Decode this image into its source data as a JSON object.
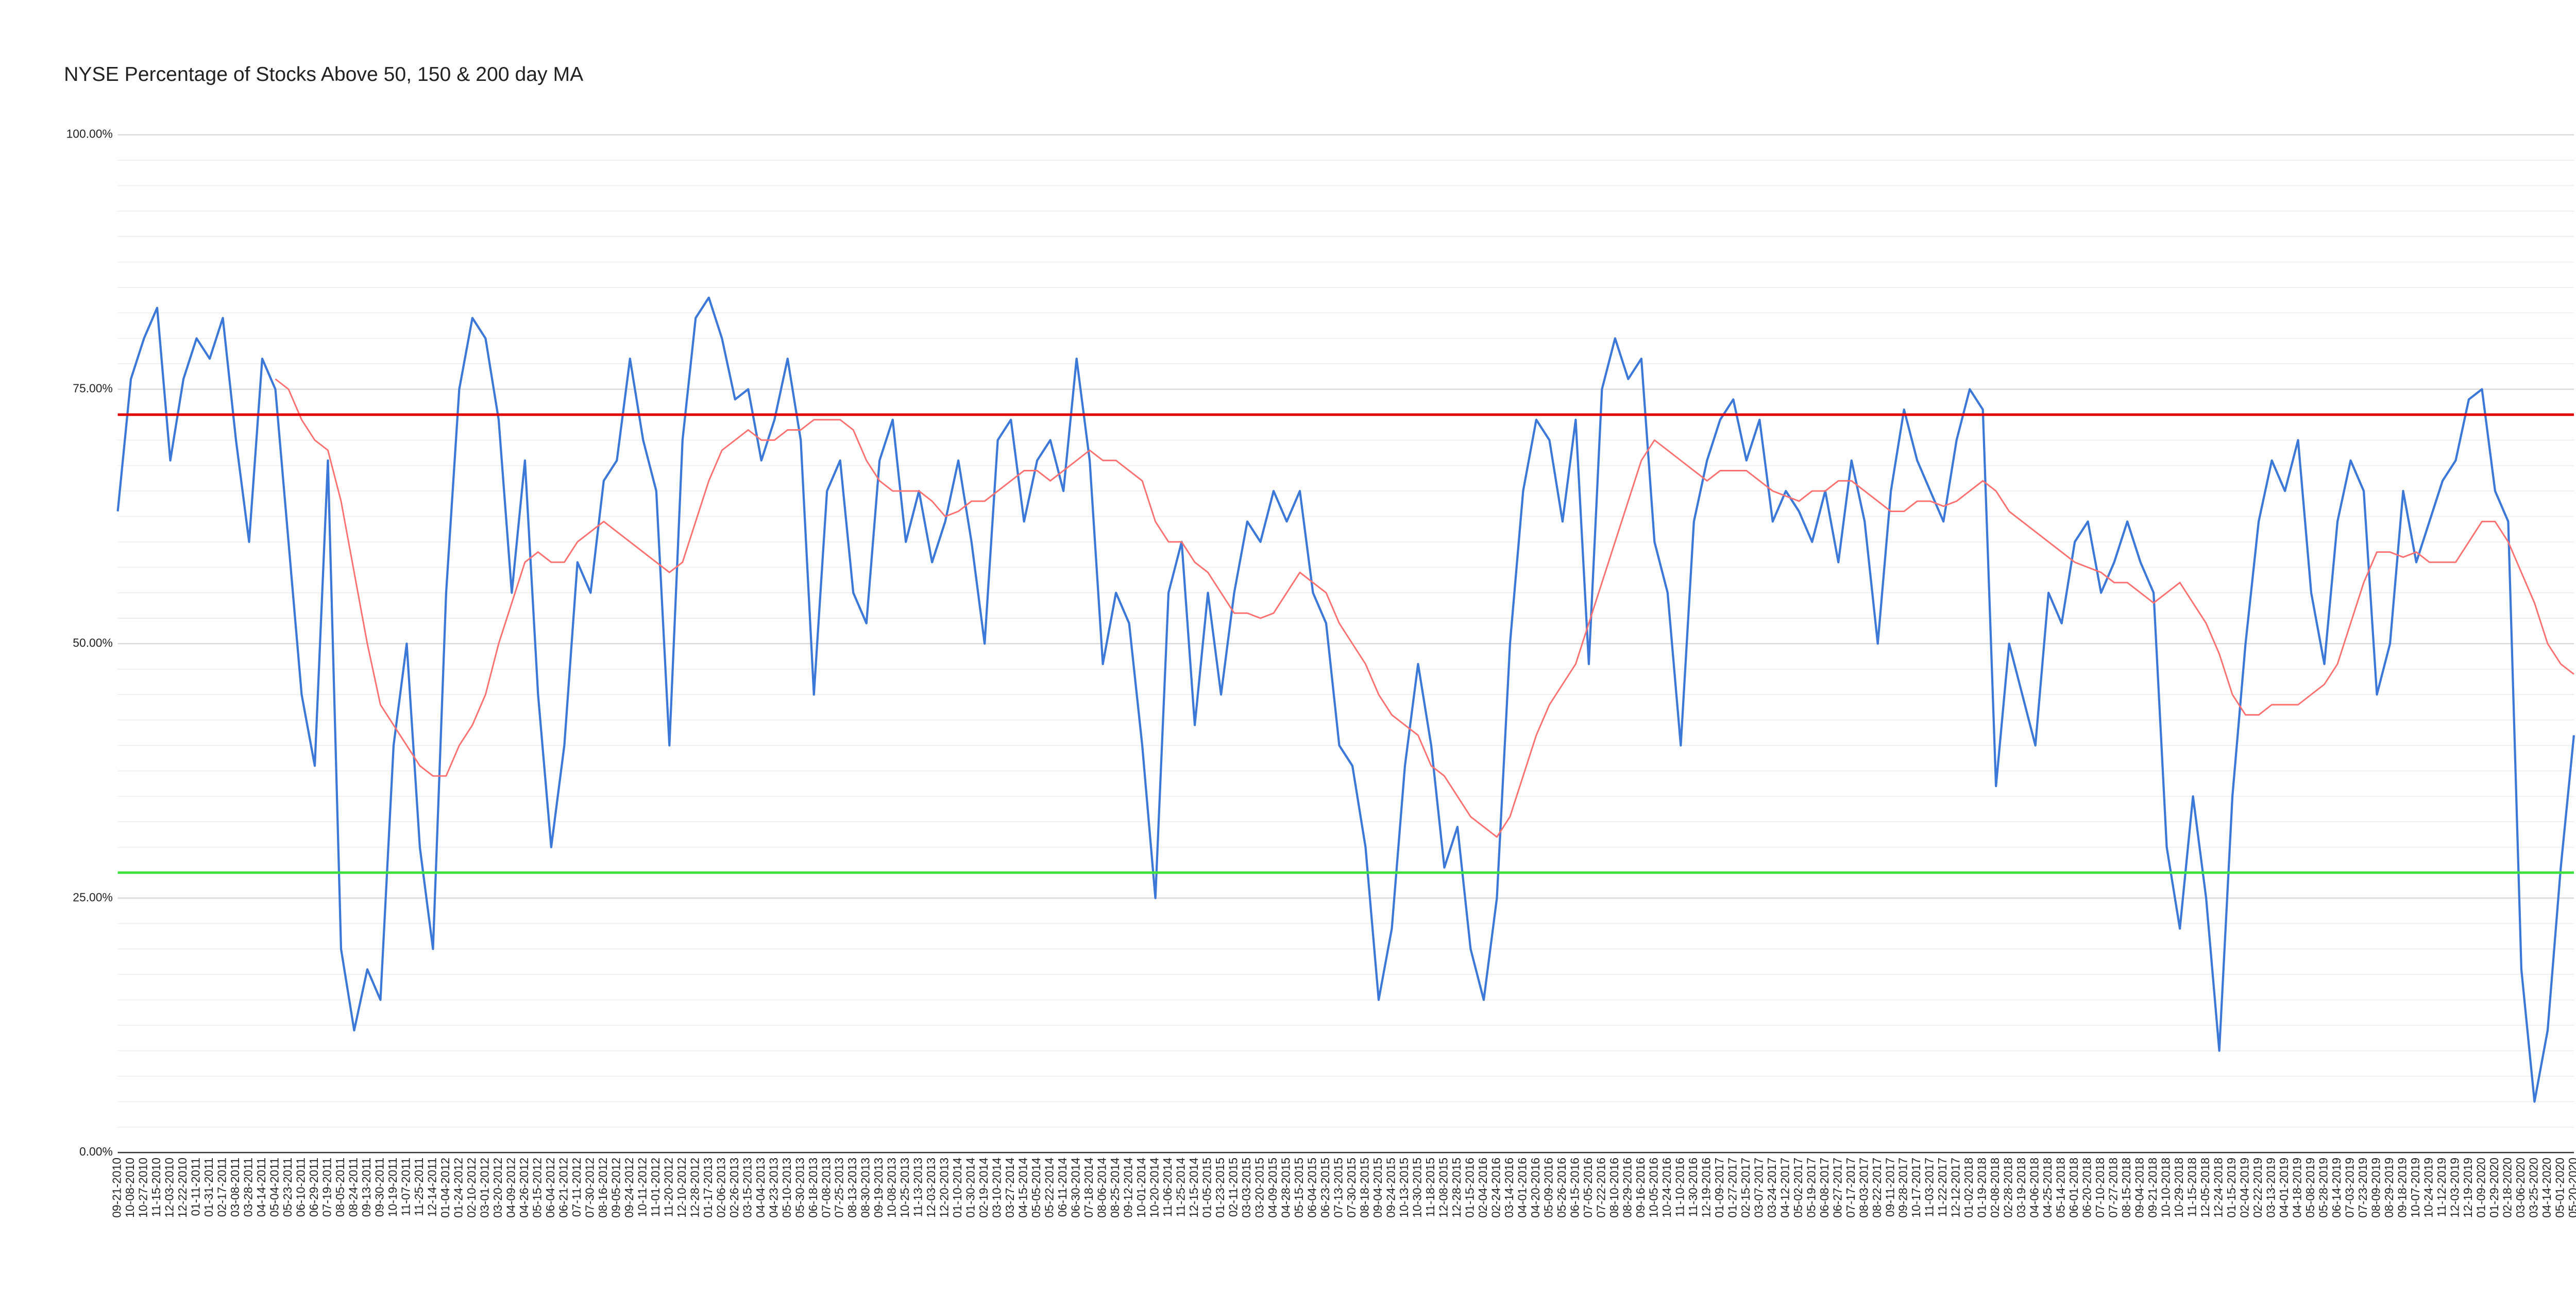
{
  "chart_data": {
    "type": "line",
    "title": "NYSE Percentage of Stocks Above 50, 150 & 200 day MA",
    "categories": [
      "09-21-2010",
      "10-08-2010",
      "10-27-2010",
      "11-15-2010",
      "12-03-2010",
      "12-22-2010",
      "01-11-2011",
      "01-31-2011",
      "02-17-2011",
      "03-08-2011",
      "03-28-2011",
      "04-14-2011",
      "05-04-2011",
      "05-23-2011",
      "06-10-2011",
      "06-29-2011",
      "07-19-2011",
      "08-05-2011",
      "08-24-2011",
      "09-13-2011",
      "09-30-2011",
      "10-19-2011",
      "11-07-2011",
      "11-25-2011",
      "12-14-2011",
      "01-04-2012",
      "01-24-2012",
      "02-10-2012",
      "03-01-2012",
      "03-20-2012",
      "04-09-2012",
      "04-26-2012",
      "05-15-2012",
      "06-04-2012",
      "06-21-2012",
      "07-11-2012",
      "07-30-2012",
      "08-16-2012",
      "09-05-2012",
      "09-24-2012",
      "10-11-2012",
      "11-01-2012",
      "11-20-2012",
      "12-10-2012",
      "12-28-2012",
      "01-17-2013",
      "02-06-2013",
      "02-26-2013",
      "03-15-2013",
      "04-04-2013",
      "04-23-2013",
      "05-10-2013",
      "05-30-2013",
      "06-18-2013",
      "07-08-2013",
      "07-25-2013",
      "08-13-2013",
      "08-30-2013",
      "09-19-2013",
      "10-08-2013",
      "10-25-2013",
      "11-13-2013",
      "12-03-2013",
      "12-20-2013",
      "01-10-2014",
      "01-30-2014",
      "02-19-2014",
      "03-10-2014",
      "03-27-2014",
      "04-15-2014",
      "05-05-2014",
      "05-22-2014",
      "06-11-2014",
      "06-30-2014",
      "07-18-2014",
      "08-06-2014",
      "08-25-2014",
      "09-12-2014",
      "10-01-2014",
      "10-20-2014",
      "11-06-2014",
      "11-25-2014",
      "12-15-2014",
      "01-05-2015",
      "01-23-2015",
      "02-11-2015",
      "03-03-2015",
      "03-20-2015",
      "04-09-2015",
      "04-28-2015",
      "05-15-2015",
      "06-04-2015",
      "06-23-2015",
      "07-13-2015",
      "07-30-2015",
      "08-18-2015",
      "09-04-2015",
      "09-24-2015",
      "10-13-2015",
      "10-30-2015",
      "11-18-2015",
      "12-08-2015",
      "12-28-2015",
      "01-15-2016",
      "02-04-2016",
      "02-24-2016",
      "03-14-2016",
      "04-01-2016",
      "04-20-2016",
      "05-09-2016",
      "05-26-2016",
      "06-15-2016",
      "07-05-2016",
      "07-22-2016",
      "08-10-2016",
      "08-29-2016",
      "09-16-2016",
      "10-05-2016",
      "10-24-2016",
      "11-10-2016",
      "11-30-2016",
      "12-19-2016",
      "01-09-2017",
      "01-27-2017",
      "02-15-2017",
      "03-07-2017",
      "03-24-2017",
      "04-12-2017",
      "05-02-2017",
      "05-19-2017",
      "06-08-2017",
      "06-27-2017",
      "07-17-2017",
      "08-03-2017",
      "08-22-2017",
      "09-11-2017",
      "09-28-2017",
      "10-17-2017",
      "11-03-2017",
      "11-22-2017",
      "12-12-2017",
      "01-02-2018",
      "01-19-2018",
      "02-08-2018",
      "02-28-2018",
      "03-19-2018",
      "04-06-2018",
      "04-25-2018",
      "05-14-2018",
      "06-01-2018",
      "06-20-2018",
      "07-10-2018",
      "07-27-2018",
      "08-15-2018",
      "09-04-2018",
      "09-21-2018",
      "10-10-2018",
      "10-29-2018",
      "11-15-2018",
      "12-05-2018",
      "12-24-2018",
      "01-15-2019",
      "02-04-2019",
      "02-22-2019",
      "03-13-2019",
      "04-01-2019",
      "04-18-2019",
      "05-08-2019",
      "05-28-2019",
      "06-14-2019",
      "07-03-2019",
      "07-23-2019",
      "08-09-2019",
      "08-29-2019",
      "09-18-2019",
      "10-07-2019",
      "10-24-2019",
      "11-12-2019",
      "12-03-2019",
      "12-19-2019",
      "01-09-2020",
      "01-29-2020",
      "02-18-2020",
      "03-06-2020",
      "03-25-2020",
      "04-14-2020",
      "05-01-2020",
      "05-20-2020"
    ],
    "series": [
      {
        "color": "#3c78d8",
        "values": [
          63,
          76,
          80,
          83,
          68,
          76,
          80,
          78,
          82,
          70,
          60,
          78,
          75,
          60,
          45,
          38,
          68,
          20,
          12,
          18,
          15,
          40,
          50,
          30,
          20,
          55,
          75,
          82,
          80,
          72,
          55,
          68,
          45,
          30,
          40,
          58,
          55,
          66,
          68,
          78,
          70,
          65,
          40,
          70,
          82,
          84,
          80,
          74,
          75,
          68,
          72,
          78,
          70,
          45,
          65,
          68,
          55,
          52,
          68,
          72,
          60,
          65,
          58,
          62,
          68,
          60,
          50,
          70,
          72,
          62,
          68,
          70,
          65,
          78,
          68,
          48,
          55,
          52,
          40,
          25,
          55,
          60,
          42,
          55,
          45,
          55,
          62,
          60,
          65,
          62,
          65,
          55,
          52,
          40,
          38,
          30,
          15,
          22,
          38,
          48,
          40,
          28,
          32,
          20,
          15,
          25,
          50,
          65,
          72,
          70,
          62,
          72,
          48,
          75,
          80,
          76,
          78,
          60,
          55,
          40,
          62,
          68,
          72,
          74,
          68,
          72,
          62,
          65,
          63,
          60,
          65,
          58,
          68,
          62,
          50,
          65,
          73,
          68,
          65,
          62,
          70,
          75,
          73,
          36,
          50,
          45,
          40,
          55,
          52,
          60,
          62,
          55,
          58,
          62,
          58,
          55,
          30,
          22,
          35,
          25,
          10,
          35,
          50,
          62,
          68,
          65,
          70,
          55,
          48,
          62,
          68,
          65,
          45,
          50,
          65,
          58,
          62,
          66,
          68,
          74,
          75,
          65,
          62,
          18,
          5,
          12,
          28,
          41
        ]
      },
      {
        "color": "#ff7070",
        "values": [
          null,
          null,
          null,
          null,
          null,
          null,
          null,
          null,
          null,
          null,
          null,
          null,
          76,
          75,
          72,
          70,
          69,
          64,
          57,
          50,
          44,
          42,
          40,
          38,
          37,
          37,
          40,
          42,
          45,
          50,
          54,
          58,
          59,
          58,
          58,
          60,
          61,
          62,
          61,
          60,
          59,
          58,
          57,
          58,
          62,
          66,
          69,
          70,
          71,
          70,
          70,
          71,
          71,
          72,
          72,
          72,
          71,
          68,
          66,
          65,
          65,
          65,
          64,
          62.5,
          63,
          64,
          64,
          65,
          66,
          67,
          67,
          66,
          67,
          68,
          69,
          68,
          68,
          67,
          66,
          62,
          60,
          60,
          58,
          57,
          55,
          53,
          53,
          52.5,
          53,
          55,
          57,
          56,
          55,
          52,
          50,
          48,
          45,
          43,
          42,
          41,
          38,
          37,
          35,
          33,
          32,
          31,
          33,
          37,
          41,
          44,
          46,
          48,
          52,
          56,
          60,
          64,
          68,
          70,
          69,
          68,
          67,
          66,
          67,
          67,
          67,
          66,
          65,
          64.5,
          64,
          65,
          65,
          66,
          66,
          65,
          64,
          63,
          63,
          64,
          64,
          63.5,
          64,
          65,
          66,
          65,
          63,
          62,
          61,
          60,
          59,
          58,
          57.5,
          57,
          56,
          56,
          55,
          54,
          55,
          56,
          54,
          52,
          49,
          45,
          43,
          43,
          44,
          44,
          44,
          45,
          46,
          48,
          52,
          56,
          59,
          59,
          58.5,
          59,
          58,
          58,
          58,
          60,
          62,
          62,
          60,
          57,
          54,
          50,
          48,
          47
        ]
      }
    ],
    "reference_lines": [
      {
        "value": 72.5,
        "color": "#e00000"
      },
      {
        "value": 27.5,
        "color": "#3ee03e"
      }
    ],
    "ylim": [
      0,
      100
    ],
    "yticks": [
      {
        "value": 0,
        "label": "0.00%"
      },
      {
        "value": 25,
        "label": "25.00%"
      },
      {
        "value": 50,
        "label": "50.00%"
      },
      {
        "value": 75,
        "label": "75.00%"
      },
      {
        "value": 100,
        "label": "100.00%"
      }
    ],
    "minor_gridlines": [
      2.5,
      5,
      7.5,
      10,
      12.5,
      15,
      17.5,
      20,
      22.5,
      27.5,
      30,
      32.5,
      35,
      37.5,
      40,
      42.5,
      45,
      47.5,
      52.5,
      55,
      57.5,
      60,
      62.5,
      65,
      67.5,
      70,
      72.5,
      77.5,
      80,
      82.5,
      85,
      87.5,
      90,
      92.5,
      95,
      97.5
    ],
    "grid": true
  }
}
